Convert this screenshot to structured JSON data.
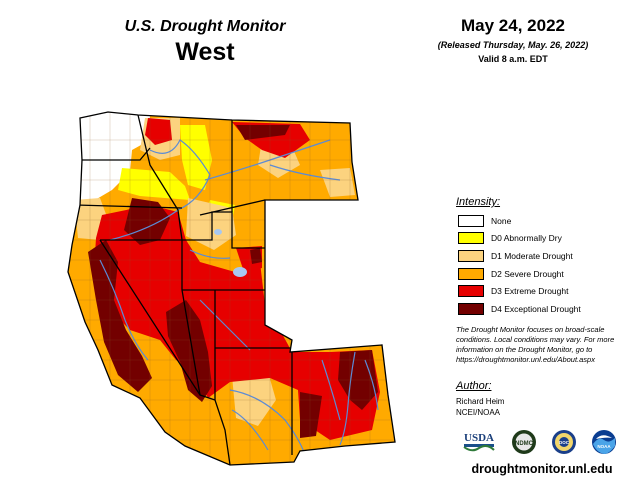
{
  "header": {
    "title": "U.S. Drought Monitor",
    "region": "West",
    "date": "May 24, 2022",
    "released": "(Released Thursday, May. 26, 2022)",
    "valid": "Valid 8 a.m. EDT"
  },
  "legend": {
    "title": "Intensity:",
    "items": [
      {
        "label": "None",
        "color": "#ffffff"
      },
      {
        "label": "D0 Abnormally Dry",
        "color": "#ffff00"
      },
      {
        "label": "D1 Moderate Drought",
        "color": "#fcd37f"
      },
      {
        "label": "D2 Severe Drought",
        "color": "#ffaa00"
      },
      {
        "label": "D3 Extreme Drought",
        "color": "#e60000"
      },
      {
        "label": "D4 Exceptional Drought",
        "color": "#730000"
      }
    ]
  },
  "note": "The Drought Monitor focuses on broad-scale conditions. Local conditions may vary. For more information on the Drought Monitor, go to https://droughtmonitor.unl.edu/About.aspx",
  "author": {
    "title": "Author:",
    "name": "Richard Heim",
    "org": "NCEI/NOAA"
  },
  "logos": {
    "usda": "USDA",
    "ndmc": "NDMC",
    "doc": "DOC",
    "noaa": "NOAA"
  },
  "website": "droughtmonitor.unl.edu",
  "colors": {
    "river": "#5b8bd6",
    "state_border": "#000000",
    "county_border": "#7a5a3a"
  }
}
